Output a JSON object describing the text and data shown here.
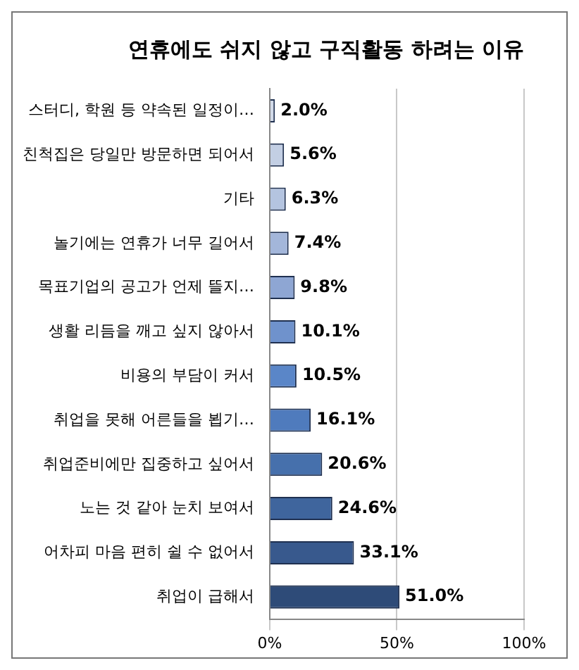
{
  "chart_data": {
    "type": "bar",
    "orientation": "horizontal",
    "title": "연휴에도 쉬지 않고 구직활동 하려는 이유",
    "categories": [
      "스터디, 학원 등 약속된 일정이…",
      "친척집은 당일만 방문하면 되어서",
      "기타",
      "놀기에는 연휴가 너무 길어서",
      "목표기업의 공고가 언제 뜰지…",
      "생활 리듬을 깨고 싶지 않아서",
      "비용의 부담이 커서",
      "취업을 못해 어른들을 뵙기…",
      "취업준비에만 집중하고 싶어서",
      "노는 것 같아 눈치 보여서",
      "어차피 마음 편히 쉴 수 없어서",
      "취업이 급해서"
    ],
    "values": [
      2.0,
      5.6,
      6.3,
      7.4,
      9.8,
      10.1,
      10.5,
      16.1,
      20.6,
      24.6,
      33.1,
      51.0
    ],
    "value_labels": [
      "2.0%",
      "5.6%",
      "6.3%",
      "7.4%",
      "9.8%",
      "10.1%",
      "10.5%",
      "16.1%",
      "20.6%",
      "24.6%",
      "33.1%",
      "51.0%"
    ],
    "colors": [
      "#d3dbe9",
      "#c3cfe4",
      "#b4c4e0",
      "#a3b6da",
      "#8ea6d3",
      "#6f92cc",
      "#5a86c8",
      "#4f7bbd",
      "#4670ac",
      "#3f659d",
      "#38598d",
      "#2e4b78"
    ],
    "xlim": [
      0,
      100
    ],
    "xticks": [
      {
        "value": 0,
        "label": "0%"
      },
      {
        "value": 50,
        "label": "50%"
      },
      {
        "value": 100,
        "label": "100%"
      }
    ],
    "grid": "x",
    "legend": false
  }
}
